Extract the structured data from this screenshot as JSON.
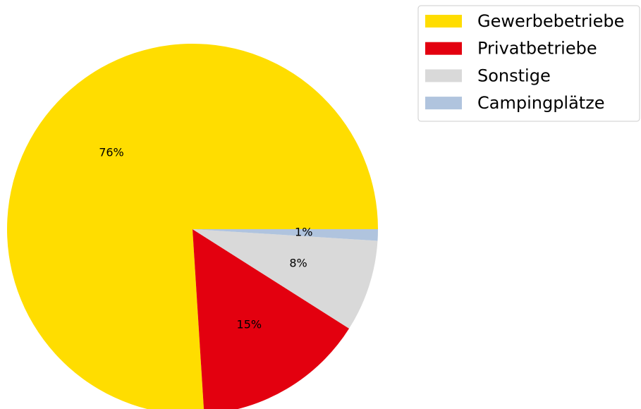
{
  "chart_data": {
    "type": "pie",
    "categories": [
      "Gewerbebetriebe",
      "Privatbetriebe",
      "Sonstige",
      "Campingplätze"
    ],
    "values": [
      76,
      15,
      8,
      1
    ],
    "value_labels": [
      "76%",
      "15%",
      "8%",
      "1%"
    ],
    "colors": [
      "#ffdd00",
      "#e3000f",
      "#d9d9d9",
      "#b0c4de"
    ],
    "legend": "upper right"
  }
}
